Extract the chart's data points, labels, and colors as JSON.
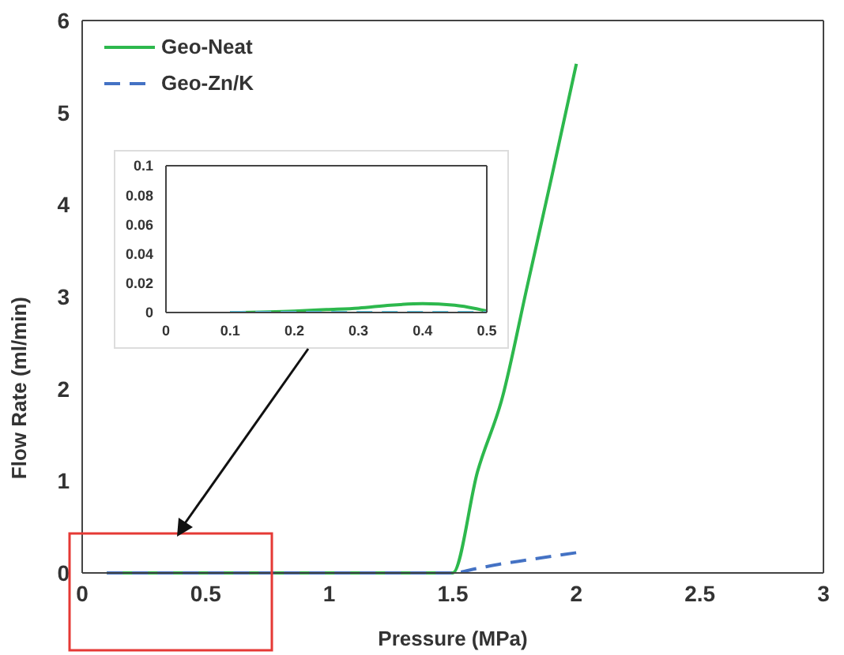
{
  "chart_data": [
    {
      "type": "line",
      "xlabel": "Pressure (MPa)",
      "ylabel": "Flow Rate (ml/min)",
      "xlim": [
        0,
        3
      ],
      "xticks": [
        0,
        0.5,
        1,
        1.5,
        2,
        2.5,
        3
      ],
      "ylim": [
        0,
        6
      ],
      "yticks": [
        0,
        1,
        2,
        3,
        4,
        5,
        6
      ],
      "grid": false,
      "legend": "top left",
      "marker": "none",
      "series": [
        {
          "name": "Geo-Neat",
          "color": "#2db84d",
          "line_style": "solid",
          "x": [
            0.1,
            0.2,
            0.3,
            0.4,
            0.5,
            0.6,
            0.7,
            0.8,
            0.9,
            1.0,
            1.1,
            1.2,
            1.3,
            1.4,
            1.5,
            1.6,
            1.7,
            1.8,
            1.9,
            2.0
          ],
          "values": [
            0,
            0,
            0,
            0,
            0,
            0,
            0,
            0,
            0,
            0,
            0,
            0,
            0,
            0,
            0,
            1.1,
            1.9,
            3.1,
            4.3,
            5.53
          ]
        },
        {
          "name": "Geo-Zn/K",
          "color": "#4472c4",
          "line_style": "dashed",
          "x": [
            0.1,
            0.2,
            0.3,
            0.4,
            0.5,
            0.6,
            0.7,
            0.8,
            0.9,
            1.0,
            1.1,
            1.2,
            1.3,
            1.4,
            1.5,
            1.6,
            1.7,
            1.8,
            1.9,
            2.0
          ],
          "values": [
            0,
            0,
            0,
            0,
            0,
            0,
            0,
            0,
            0,
            0,
            0,
            0,
            0,
            0,
            0,
            0.05,
            0.1,
            0.14,
            0.18,
            0.22
          ]
        }
      ]
    },
    {
      "type": "line",
      "xlim": [
        0,
        0.5
      ],
      "xticks": [
        0,
        0.1,
        0.2,
        0.3,
        0.4,
        0.5
      ],
      "ylim": [
        0,
        0.1
      ],
      "yticks": [
        0,
        0.02,
        0.04,
        0.06,
        0.08,
        0.1
      ],
      "grid": false,
      "legend": false,
      "marker": "none",
      "series": [
        {
          "color": "#2db84d",
          "line_style": "solid",
          "x": [
            0.1,
            0.2,
            0.25,
            0.3,
            0.35,
            0.4,
            0.45,
            0.5
          ],
          "values": [
            0,
            0.001,
            0.002,
            0.003,
            0.005,
            0.006,
            0.005,
            0.001
          ]
        },
        {
          "color": "#5bc8e8",
          "line_style": "dashed",
          "x": [
            0.1,
            0.2,
            0.3,
            0.4,
            0.5
          ],
          "values": [
            0,
            0,
            0,
            0,
            0
          ]
        }
      ]
    }
  ]
}
